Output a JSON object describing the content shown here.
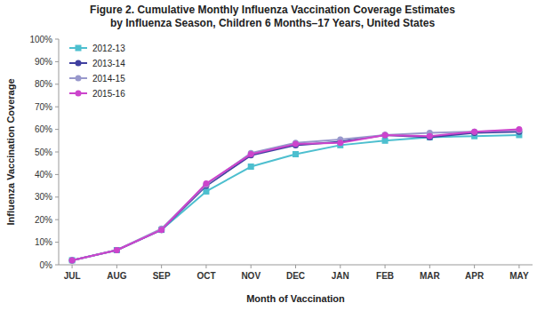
{
  "chart_data": {
    "type": "line",
    "title": "Figure 2. Cumulative Monthly Influenza Vaccination Coverage Estimates\nby Influenza Season, Children 6 Months–17 Years, United States",
    "x_label": "Month of Vaccination",
    "y_label": "Influenza Vaccination Coverage",
    "categories": [
      "JUL",
      "AUG",
      "SEP",
      "OCT",
      "NOV",
      "DEC",
      "JAN",
      "FEB",
      "MAR",
      "APR",
      "MAY"
    ],
    "series": [
      {
        "name": "2012-13",
        "color": "#4DBFCF",
        "marker": "square",
        "values": [
          2.0,
          6.5,
          15.5,
          32.5,
          43.5,
          49.0,
          53.0,
          55.0,
          56.5,
          57.0,
          57.5
        ]
      },
      {
        "name": "2013-14",
        "color": "#4040A0",
        "marker": "circle",
        "values": [
          2.0,
          6.5,
          15.5,
          35.0,
          48.5,
          53.0,
          54.5,
          57.5,
          56.5,
          58.5,
          59.0
        ]
      },
      {
        "name": "2014-15",
        "color": "#9898CC",
        "marker": "circle",
        "values": [
          2.0,
          6.5,
          16.0,
          35.5,
          49.5,
          54.0,
          55.5,
          57.5,
          58.5,
          59.0,
          59.5
        ]
      },
      {
        "name": "2015-16",
        "color": "#CC44CC",
        "marker": "circle",
        "values": [
          2.0,
          6.5,
          15.5,
          36.0,
          49.0,
          53.5,
          54.0,
          57.5,
          57.0,
          59.0,
          60.0
        ]
      }
    ],
    "ylim": [
      0,
      100
    ],
    "yticks": [
      {
        "value": 0,
        "label": "0%"
      },
      {
        "value": 10,
        "label": "10%"
      },
      {
        "value": 20,
        "label": "20%"
      },
      {
        "value": 30,
        "label": "30%"
      },
      {
        "value": 40,
        "label": "40%"
      },
      {
        "value": 50,
        "label": "50%"
      },
      {
        "value": 60,
        "label": "60%"
      },
      {
        "value": 70,
        "label": "70%"
      },
      {
        "value": 80,
        "label": "80%"
      },
      {
        "value": 90,
        "label": "90%"
      },
      {
        "value": 100,
        "label": "100%"
      }
    ],
    "grid": false,
    "legend": "upper left"
  }
}
